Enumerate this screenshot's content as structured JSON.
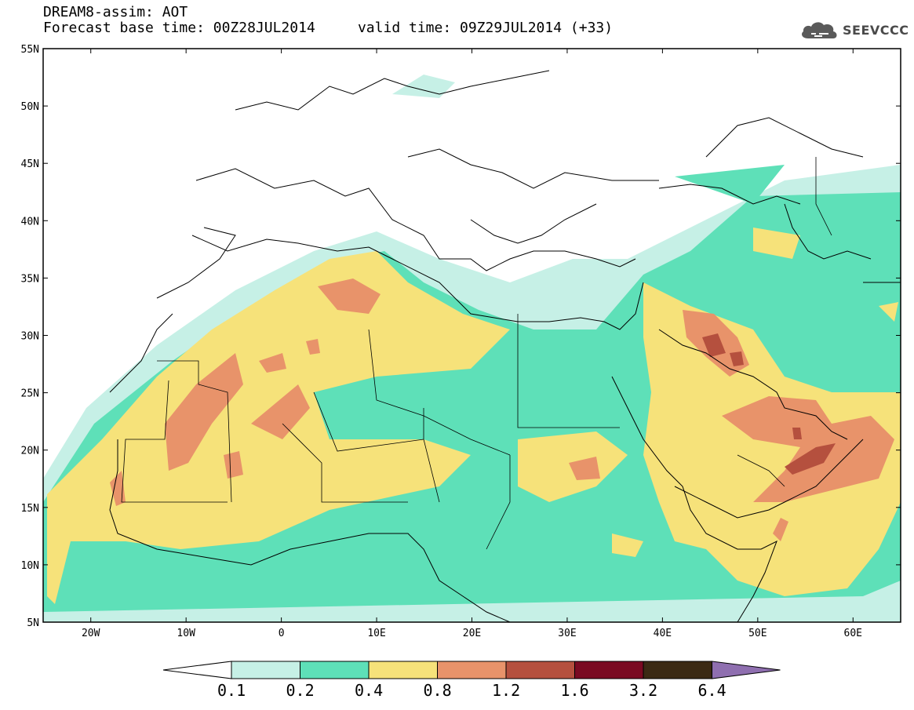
{
  "header": {
    "title": "DREAM8-assim: AOT",
    "base_time_label": "Forecast base time: 00Z28JUL2014",
    "valid_time_label": "valid time: 09Z29JUL2014 (+33)"
  },
  "logo": {
    "text": "SEEVCCC",
    "icon": "cloud-icon"
  },
  "map": {
    "lon_range": [
      -25,
      65
    ],
    "lat_range": [
      5,
      55
    ],
    "lat_ticks": [
      "5N",
      "10N",
      "15N",
      "20N",
      "25N",
      "30N",
      "35N",
      "40N",
      "45N",
      "50N",
      "55N"
    ],
    "lon_ticks": [
      "20W",
      "10W",
      "0",
      "10E",
      "20E",
      "30E",
      "40E",
      "50E",
      "60E"
    ]
  },
  "colorbar": {
    "labels": [
      "0.1",
      "0.2",
      "0.4",
      "0.8",
      "1.2",
      "1.6",
      "3.2",
      "6.4"
    ],
    "colors": [
      "#ffffff",
      "#c6f0e6",
      "#5ee0b8",
      "#f6e27a",
      "#e8936a",
      "#b5503e",
      "#7a0a22",
      "#3b2a14",
      "#8f6fb0"
    ]
  }
}
